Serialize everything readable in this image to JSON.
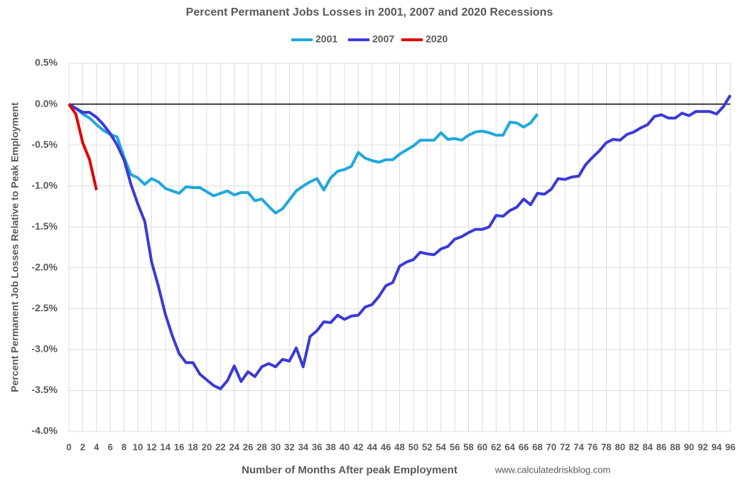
{
  "chart_data": {
    "type": "line",
    "title": "Percent Permanent Jobs Losses in 2001, 2007 and 2020 Recessions",
    "x_label": "Number of Months After peak Employment",
    "y_label": "Percent Permanent Job Losses Relative to Peak Employment",
    "source": "www.calculatedriskblog.com",
    "x": [
      0,
      1,
      2,
      3,
      4,
      5,
      6,
      7,
      8,
      9,
      10,
      11,
      12,
      13,
      14,
      15,
      16,
      17,
      18,
      19,
      20,
      21,
      22,
      23,
      24,
      25,
      26,
      27,
      28,
      29,
      30,
      31,
      32,
      33,
      34,
      35,
      36,
      37,
      38,
      39,
      40,
      41,
      42,
      43,
      44,
      45,
      46,
      47,
      48,
      49,
      50,
      51,
      52,
      53,
      54,
      55,
      56,
      57,
      58,
      59,
      60,
      61,
      62,
      63,
      64,
      65,
      66,
      67,
      68,
      69,
      70,
      71,
      72,
      73,
      74,
      75,
      76,
      77,
      78,
      79,
      80,
      81,
      82,
      83,
      84,
      85,
      86,
      87,
      88,
      89,
      90,
      91,
      92,
      93,
      94,
      95,
      96
    ],
    "series": [
      {
        "name": "2001",
        "color": "#1fa8dc",
        "values": [
          0,
          -0.05,
          -0.12,
          -0.17,
          -0.25,
          -0.32,
          -0.37,
          -0.4,
          -0.65,
          -0.86,
          -0.9,
          -0.98,
          -0.91,
          -0.95,
          -1.03,
          -1.06,
          -1.09,
          -1.01,
          -1.02,
          -1.02,
          -1.07,
          -1.12,
          -1.09,
          -1.06,
          -1.11,
          -1.08,
          -1.08,
          -1.18,
          -1.16,
          -1.25,
          -1.33,
          -1.28,
          -1.17,
          -1.06,
          -1.0,
          -0.95,
          -0.91,
          -1.05,
          -0.9,
          -0.82,
          -0.8,
          -0.76,
          -0.59,
          -0.66,
          -0.69,
          -0.71,
          -0.68,
          -0.68,
          -0.61,
          -0.56,
          -0.51,
          -0.44,
          -0.44,
          -0.44,
          -0.35,
          -0.43,
          -0.42,
          -0.44,
          -0.38,
          -0.34,
          -0.33,
          -0.35,
          -0.38,
          -0.38,
          -0.22,
          -0.23,
          -0.28,
          -0.23,
          -0.12,
          null,
          null,
          null,
          null,
          null,
          null,
          null,
          null,
          null,
          null,
          null,
          null,
          null,
          null,
          null,
          null,
          null,
          null,
          null,
          null,
          null,
          null,
          null,
          null,
          null,
          null,
          null,
          null
        ]
      },
      {
        "name": "2007",
        "color": "#3a3ad8",
        "values": [
          0,
          -0.05,
          -0.1,
          -0.1,
          -0.16,
          -0.25,
          -0.36,
          -0.5,
          -0.68,
          -0.98,
          -1.22,
          -1.43,
          -1.93,
          -2.23,
          -2.57,
          -2.83,
          -3.05,
          -3.16,
          -3.16,
          -3.3,
          -3.37,
          -3.44,
          -3.48,
          -3.38,
          -3.2,
          -3.39,
          -3.27,
          -3.33,
          -3.21,
          -3.17,
          -3.21,
          -3.12,
          -3.14,
          -2.98,
          -3.21,
          -2.84,
          -2.77,
          -2.66,
          -2.67,
          -2.58,
          -2.63,
          -2.59,
          -2.58,
          -2.48,
          -2.45,
          -2.35,
          -2.22,
          -2.18,
          -1.98,
          -1.93,
          -1.9,
          -1.81,
          -1.83,
          -1.84,
          -1.77,
          -1.74,
          -1.65,
          -1.62,
          -1.57,
          -1.53,
          -1.53,
          -1.5,
          -1.36,
          -1.37,
          -1.3,
          -1.26,
          -1.16,
          -1.23,
          -1.09,
          -1.1,
          -1.04,
          -0.91,
          -0.92,
          -0.89,
          -0.88,
          -0.74,
          -0.65,
          -0.57,
          -0.47,
          -0.43,
          -0.44,
          -0.37,
          -0.34,
          -0.29,
          -0.25,
          -0.15,
          -0.13,
          -0.17,
          -0.17,
          -0.11,
          -0.14,
          -0.09,
          -0.09,
          -0.09,
          -0.12,
          -0.03,
          0.11
        ]
      },
      {
        "name": "2020",
        "color": "#e00000",
        "values": [
          0,
          -0.12,
          -0.47,
          -0.68,
          -1.05,
          null,
          null,
          null,
          null,
          null,
          null,
          null,
          null,
          null,
          null,
          null,
          null,
          null,
          null,
          null,
          null,
          null,
          null,
          null,
          null,
          null,
          null,
          null,
          null,
          null,
          null,
          null,
          null,
          null,
          null,
          null,
          null,
          null,
          null,
          null,
          null,
          null,
          null,
          null,
          null,
          null,
          null,
          null,
          null,
          null,
          null,
          null,
          null,
          null,
          null,
          null,
          null,
          null,
          null,
          null,
          null,
          null,
          null,
          null,
          null,
          null,
          null,
          null,
          null,
          null,
          null,
          null,
          null,
          null,
          null,
          null,
          null,
          null,
          null,
          null,
          null,
          null,
          null,
          null,
          null,
          null,
          null,
          null,
          null,
          null,
          null,
          null,
          null,
          null,
          null,
          null,
          null
        ]
      }
    ],
    "xlim": [
      0,
      96
    ],
    "xticks": [
      0,
      2,
      4,
      6,
      8,
      10,
      12,
      14,
      16,
      18,
      20,
      22,
      24,
      26,
      28,
      30,
      32,
      34,
      36,
      38,
      40,
      42,
      44,
      46,
      48,
      50,
      52,
      54,
      56,
      58,
      60,
      62,
      64,
      66,
      68,
      70,
      72,
      74,
      76,
      78,
      80,
      82,
      84,
      86,
      88,
      90,
      92,
      94,
      96
    ],
    "ylim": [
      -4,
      0.5
    ],
    "yticks": [
      {
        "value": 0.5,
        "label": "0.5%"
      },
      {
        "value": 0,
        "label": "0.0%"
      },
      {
        "value": -0.5,
        "label": "-0.5%"
      },
      {
        "value": -1,
        "label": "-1.0%"
      },
      {
        "value": -1.5,
        "label": "-1.5%"
      },
      {
        "value": -2,
        "label": "-2.0%"
      },
      {
        "value": -2.5,
        "label": "-2.5%"
      },
      {
        "value": -3,
        "label": "-3.0%"
      },
      {
        "value": -3.5,
        "label": "-3.5%"
      },
      {
        "value": -4,
        "label": "-4.0%"
      }
    ],
    "grid": true
  }
}
